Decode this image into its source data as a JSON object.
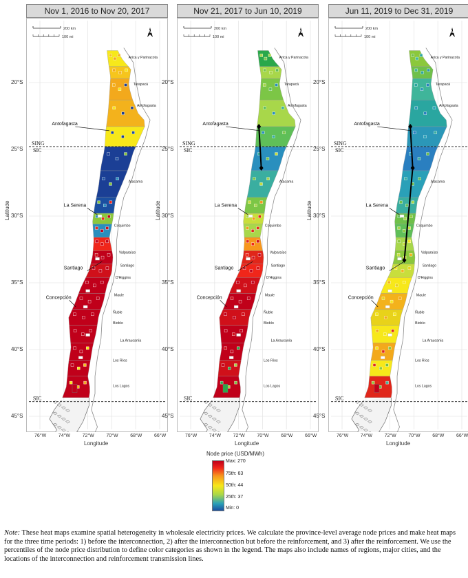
{
  "panels": [
    {
      "title": "Nov 1, 2016 to Nov 20, 2017",
      "scheme": "before"
    },
    {
      "title": "Nov 21, 2017 to Jun 10, 2019",
      "scheme": "middle"
    },
    {
      "title": "Jun 11, 2019 to Dec 31, 2019",
      "scheme": "after"
    }
  ],
  "scale": {
    "km": "200 km",
    "mi": "100 mi"
  },
  "north_arrow": "N",
  "axes": {
    "y_title": "Latitude",
    "x_title": "Longitude",
    "y_ticks": [
      "20°S",
      "25°S",
      "30°S",
      "35°S",
      "40°S",
      "45°S"
    ],
    "x_ticks": [
      "76°W",
      "74°W",
      "72°W",
      "70°W",
      "68°W",
      "66°W"
    ]
  },
  "regions": [
    "Arica y Parinacota",
    "Tarapacá",
    "Antofagasta",
    "Atacama",
    "Coquimbo",
    "Valparaíso",
    "Santiago",
    "O'Higgins",
    "Maule",
    "Ñuble",
    "Biobío",
    "La Araucanía",
    "Los Ríos",
    "Los Lagos"
  ],
  "cities": [
    "Antofagasta",
    "La Serena",
    "Santiago",
    "Concepción"
  ],
  "system_labels": {
    "sing": "SING",
    "sic_top": "SIC",
    "sic_bottom": "SIC"
  },
  "legend": {
    "title": "Node price (USD/MWh)",
    "max": "Max: 270",
    "p75": "75th: 63",
    "p50": "50th: 44",
    "p25": "25th: 37",
    "min": "Min: 0",
    "colors": {
      "max": "#c0001a",
      "p75": "#f0261a",
      "p50": "#f7e81a",
      "p25": "#a8d74a",
      "min": "#1b4fa0"
    }
  },
  "note": {
    "label": "Note:",
    "text": "These heat maps examine spatial heterogeneity in wholesale electricity prices. We calculate the province-level average node prices and make heat maps for the three time periods: 1) before the interconnection, 2) after the interconnection but before the reinforcement, and 3) after the reinforcement. We use the percentiles of the node price distribution to define color categories as shown in the legend. The maps also include names of regions, major cities, and the locations of the interconnection and reinforcement transmission lines."
  }
}
